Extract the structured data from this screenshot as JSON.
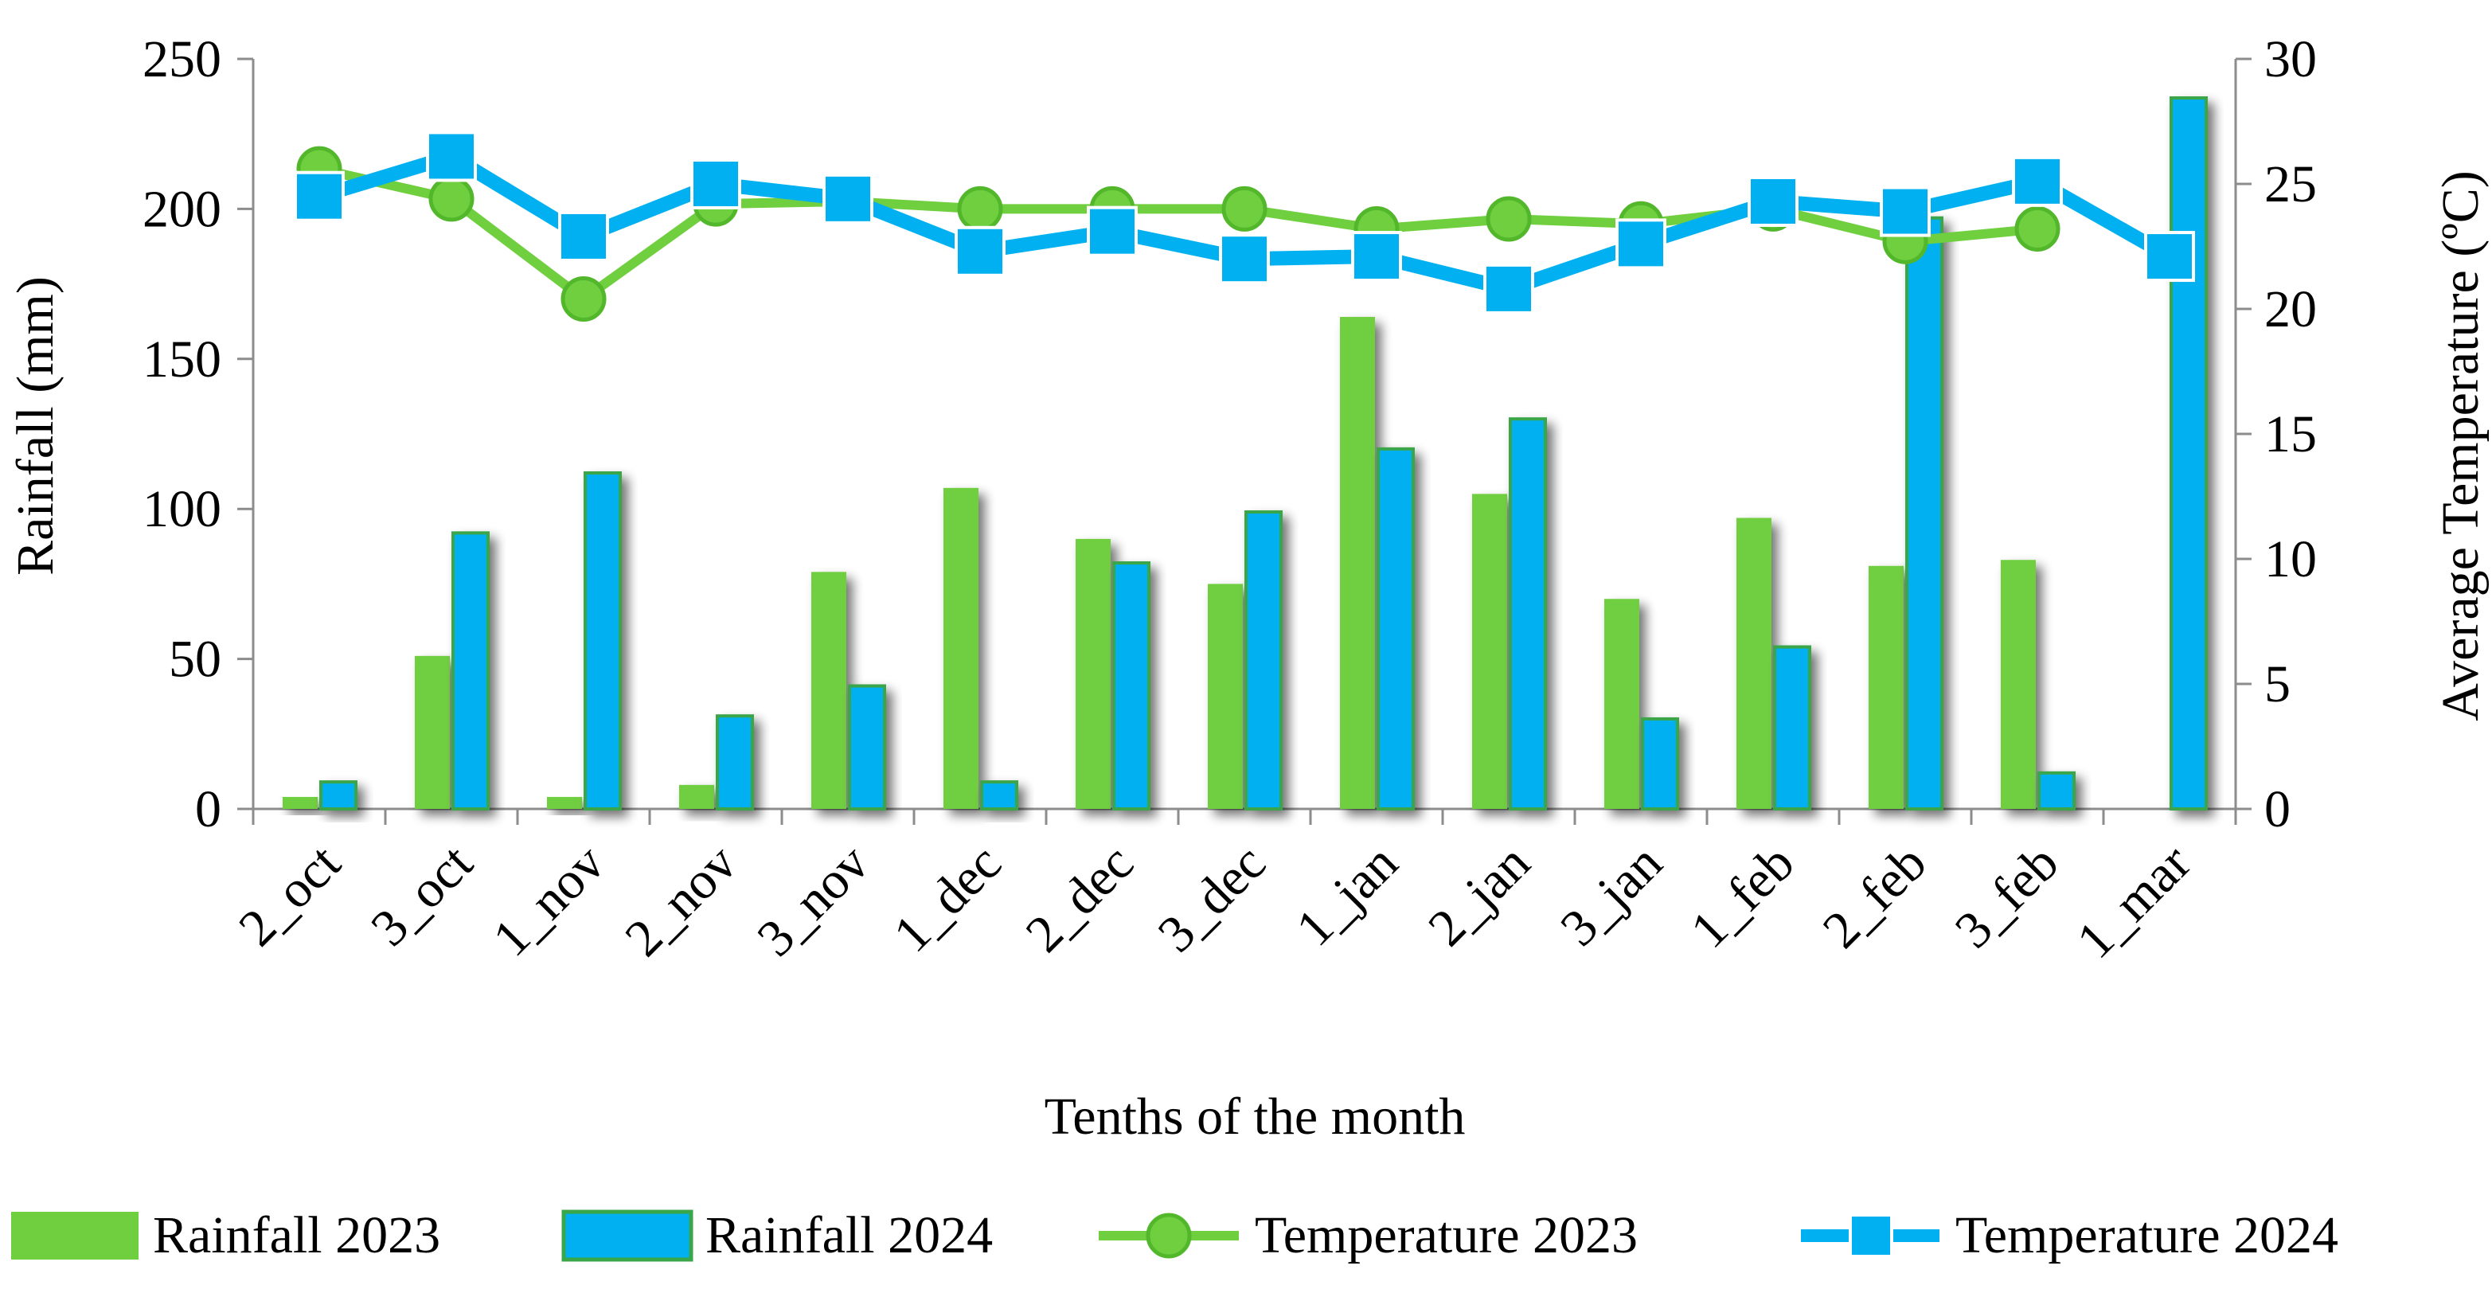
{
  "colors": {
    "green": "#6fcf3f",
    "green_stroke": "#52b72b",
    "blue": "#00b0f0",
    "blue_stroke": "#3aa64a",
    "axis": "#8c8c8c"
  },
  "chart_data": {
    "type": "bar",
    "categories": [
      "2_oct",
      "3_oct",
      "1_nov",
      "2_nov",
      "3_nov",
      "1_dec",
      "2_dec",
      "3_dec",
      "1_jan",
      "2_jan",
      "3_jan",
      "1_feb",
      "2_feb",
      "3_feb",
      "1_mar"
    ],
    "xlabel": "Tenths of the month",
    "ylabel": "Rainfall (mm)",
    "y2label": "Average Temperature (ºC)",
    "ylim": [
      0,
      250
    ],
    "y2lim": [
      0,
      30
    ],
    "yticks": [
      "0",
      "50",
      "100",
      "150",
      "200",
      "250"
    ],
    "y2ticks": [
      "0",
      "5",
      "10",
      "15",
      "20",
      "25",
      "30"
    ],
    "grid": false,
    "legend_position": "bottom",
    "series": [
      {
        "name": "Rainfall 2023",
        "kind": "bar",
        "axis": "left",
        "values": [
          4,
          51,
          4,
          8,
          79,
          107,
          90,
          75,
          164,
          105,
          70,
          97,
          81,
          83,
          null
        ]
      },
      {
        "name": "Rainfall 2024",
        "kind": "bar",
        "axis": "left",
        "values": [
          9,
          92,
          112,
          31,
          41,
          9,
          82,
          99,
          120,
          130,
          30,
          54,
          197,
          12,
          237
        ]
      },
      {
        "name": "Temperature 2023",
        "kind": "line",
        "marker": "circle",
        "axis": "right",
        "values": [
          25.6,
          24.4,
          20.4,
          24.2,
          24.3,
          24.0,
          24.0,
          24.0,
          23.2,
          23.6,
          23.4,
          24.0,
          22.7,
          23.2,
          null
        ]
      },
      {
        "name": "Temperature 2024",
        "kind": "line",
        "marker": "square",
        "axis": "right",
        "values": [
          24.5,
          26.1,
          22.9,
          25.0,
          24.4,
          22.3,
          23.1,
          22.0,
          22.1,
          20.8,
          22.6,
          24.3,
          23.9,
          25.1,
          22.1
        ]
      }
    ]
  }
}
